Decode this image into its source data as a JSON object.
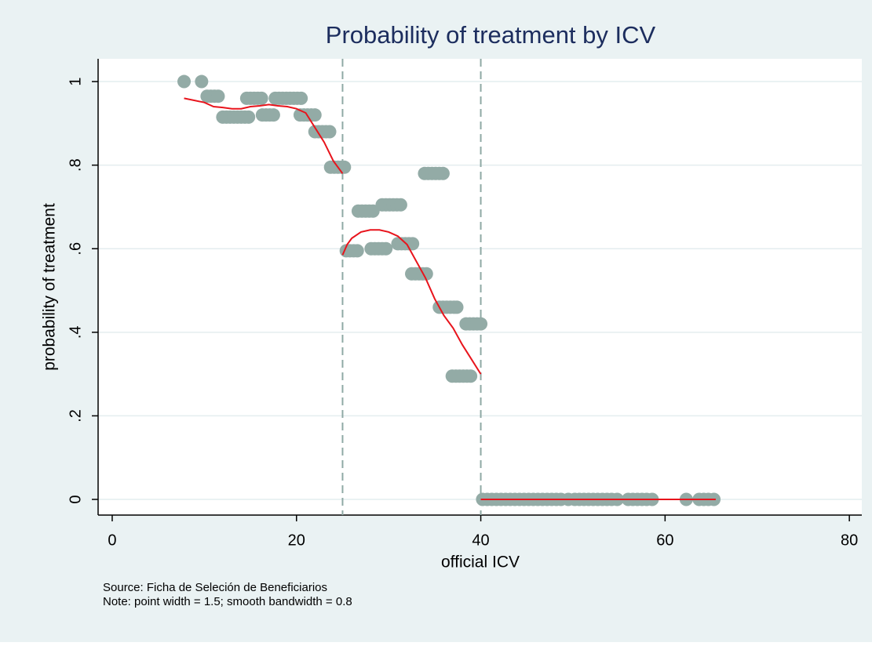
{
  "chart_data": {
    "type": "scatter",
    "title": "Probability of treatment by ICV",
    "xlabel": "official ICV",
    "ylabel": "probability of treatment",
    "notes": [
      "Source: Ficha de Seleción de Beneficiarios",
      "Note: point width = 1.5; smooth bandwidth = 0.8"
    ],
    "xlim": [
      -1.53,
      81.35
    ],
    "ylim": [
      -0.0375,
      1.0545
    ],
    "xticks": [
      0,
      20,
      40,
      60,
      80
    ],
    "yticks": [
      0,
      {
        "value": 0.2,
        "label": ".2"
      },
      {
        "value": 0.4,
        "label": ".4"
      },
      {
        "value": 0.6,
        "label": ".6"
      },
      {
        "value": 0.8,
        "label": ".8"
      },
      1
    ],
    "grid": true,
    "xlines": [
      25,
      40
    ],
    "xline_color": "#8fa9a5",
    "points": {
      "color": "#93aba6",
      "x": [
        7.8,
        9.7,
        10.3,
        10.7,
        11.1,
        11.5,
        12,
        12.4,
        12.8,
        13.2,
        13.6,
        14,
        14.4,
        14.8,
        14.6,
        15,
        15.4,
        15.8,
        16.2,
        16.3,
        16.7,
        17.1,
        17.5,
        17.7,
        18.1,
        18.5,
        18.9,
        19.3,
        19.7,
        20.1,
        20.5,
        20.4,
        20.8,
        21.2,
        21.6,
        22,
        22,
        22.4,
        22.8,
        23.2,
        23.6,
        23.7,
        24.1,
        24.5,
        24.9,
        25.2,
        25.4,
        25.8,
        26.2,
        26.6,
        26.7,
        27.1,
        27.5,
        27.9,
        28.3,
        28.1,
        28.5,
        28.9,
        29.3,
        29.7,
        29.3,
        29.7,
        30.1,
        30.5,
        30.9,
        31.3,
        31,
        31.4,
        31.8,
        32.2,
        32.6,
        32.5,
        32.9,
        33.3,
        33.7,
        34.1,
        33.9,
        34.3,
        34.7,
        35.1,
        35.5,
        35.9,
        35.5,
        35.9,
        36.3,
        36.7,
        37.1,
        37.4,
        36.9,
        37.3,
        37.7,
        38.1,
        38.5,
        38.9,
        38.4,
        38.8,
        39.2,
        39.6,
        40,
        40.2,
        40.7,
        41.2,
        41.7,
        42.2,
        42.7,
        43.2,
        43.7,
        44.2,
        44.7,
        45.2,
        45.7,
        46.2,
        46.7,
        47.2,
        47.7,
        48.2,
        48.7,
        49.5,
        50.2,
        50.7,
        51.2,
        51.7,
        52.2,
        52.7,
        53.2,
        53.7,
        54.2,
        54.8,
        56,
        56.5,
        57,
        57.5,
        58,
        58.6,
        62.3,
        63.7,
        64.2,
        64.7,
        65.3
      ],
      "y": [
        1,
        1,
        0.965,
        0.965,
        0.965,
        0.965,
        0.915,
        0.915,
        0.915,
        0.915,
        0.915,
        0.915,
        0.915,
        0.915,
        0.96,
        0.96,
        0.96,
        0.96,
        0.96,
        0.92,
        0.92,
        0.92,
        0.92,
        0.96,
        0.96,
        0.96,
        0.96,
        0.96,
        0.96,
        0.96,
        0.96,
        0.92,
        0.92,
        0.92,
        0.92,
        0.92,
        0.88,
        0.88,
        0.88,
        0.88,
        0.88,
        0.795,
        0.795,
        0.795,
        0.795,
        0.795,
        0.595,
        0.595,
        0.595,
        0.595,
        0.69,
        0.69,
        0.69,
        0.69,
        0.69,
        0.6,
        0.6,
        0.6,
        0.6,
        0.6,
        0.705,
        0.705,
        0.705,
        0.705,
        0.705,
        0.705,
        0.612,
        0.612,
        0.612,
        0.612,
        0.612,
        0.54,
        0.54,
        0.54,
        0.54,
        0.54,
        0.78,
        0.78,
        0.78,
        0.78,
        0.78,
        0.78,
        0.46,
        0.46,
        0.46,
        0.46,
        0.46,
        0.46,
        0.295,
        0.295,
        0.295,
        0.295,
        0.295,
        0.295,
        0.42,
        0.42,
        0.42,
        0.42,
        0.42,
        0,
        0,
        0,
        0,
        0,
        0,
        0,
        0,
        0,
        0,
        0,
        0,
        0,
        0,
        0,
        0,
        0,
        0,
        0,
        0,
        0,
        0,
        0,
        0,
        0,
        0,
        0,
        0,
        0,
        0,
        0,
        0,
        0,
        0,
        0,
        0,
        0,
        0,
        0,
        0
      ]
    },
    "smooth": {
      "color": "#e8141c",
      "x": [
        7.8,
        10,
        11,
        12,
        13,
        14,
        15,
        16,
        17,
        18,
        19,
        20,
        21,
        22,
        23,
        24,
        25,
        25,
        25,
        25.5,
        26,
        27,
        28,
        29,
        30,
        31,
        32,
        33,
        34,
        35,
        36,
        37,
        38,
        39,
        40,
        40,
        40,
        65.5
      ],
      "y": [
        0.96,
        0.95,
        0.94,
        0.938,
        0.935,
        0.935,
        0.94,
        0.942,
        0.945,
        0.942,
        0.94,
        0.935,
        0.925,
        0.89,
        0.855,
        0.81,
        0.78,
        null,
        0.585,
        0.61,
        0.625,
        0.64,
        0.645,
        0.645,
        0.64,
        0.63,
        0.61,
        0.57,
        0.53,
        0.48,
        0.44,
        0.41,
        0.37,
        0.335,
        0.3,
        null,
        0,
        0
      ]
    }
  }
}
